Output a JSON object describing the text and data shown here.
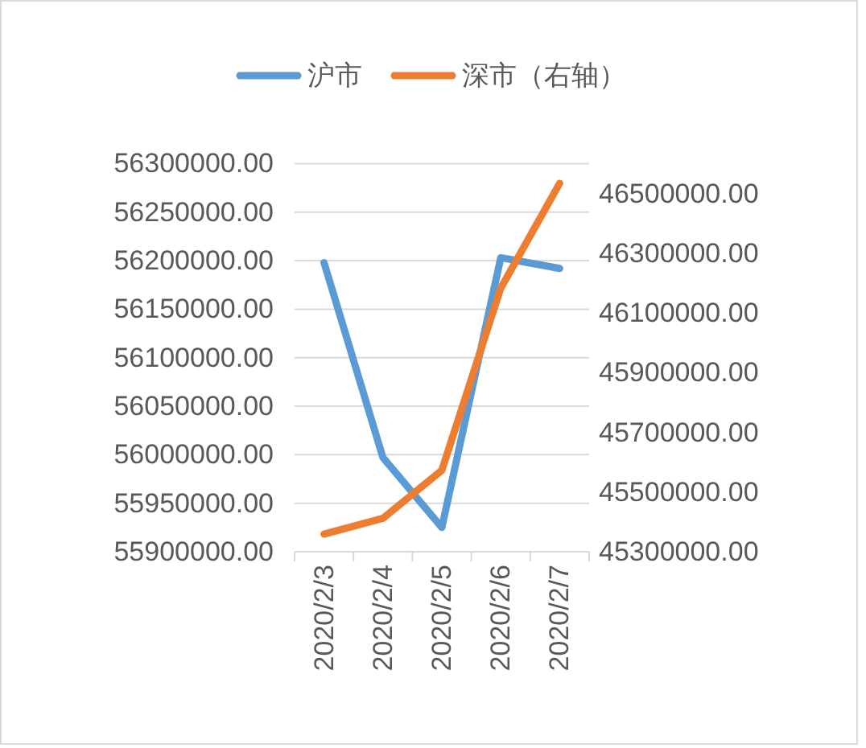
{
  "chart_data": {
    "type": "line",
    "categories": [
      "2020/2/3",
      "2020/2/4",
      "2020/2/5",
      "2020/2/6",
      "2020/2/7"
    ],
    "series": [
      {
        "name": "沪市",
        "color": "#5b9bd5",
        "values": [
          56198000,
          55997000,
          55925000,
          56203000,
          56192000
        ]
      },
      {
        "name": "深市（右轴）",
        "color": "#ed7d31",
        "axis": "y2",
        "values": [
          45359000,
          45412000,
          45573000,
          46183000,
          46534000
        ]
      }
    ],
    "ylim": [
      55900000,
      56300000
    ],
    "yticks": [
      {
        "value": 55900000,
        "label": "55900000.00"
      },
      {
        "value": 55950000,
        "label": "55950000.00"
      },
      {
        "value": 56000000,
        "label": "56000000.00"
      },
      {
        "value": 56050000,
        "label": "56050000.00"
      },
      {
        "value": 56100000,
        "label": "56100000.00"
      },
      {
        "value": 56150000,
        "label": "56150000.00"
      },
      {
        "value": 56200000,
        "label": "56200000.00"
      },
      {
        "value": 56250000,
        "label": "56250000.00"
      },
      {
        "value": 56300000,
        "label": "56300000.00"
      }
    ],
    "y2lim": [
      45300000,
      46600000
    ],
    "y2ticks": [
      {
        "value": 45300000,
        "label": "45300000.00"
      },
      {
        "value": 45500000,
        "label": "45500000.00"
      },
      {
        "value": 45700000,
        "label": "45700000.00"
      },
      {
        "value": 45900000,
        "label": "45900000.00"
      },
      {
        "value": 46100000,
        "label": "46100000.00"
      },
      {
        "value": 46300000,
        "label": "46300000.00"
      },
      {
        "value": 46500000,
        "label": "46500000.00"
      }
    ],
    "grid": "y",
    "legend": "top",
    "marker": "none",
    "line_style": "solid"
  }
}
